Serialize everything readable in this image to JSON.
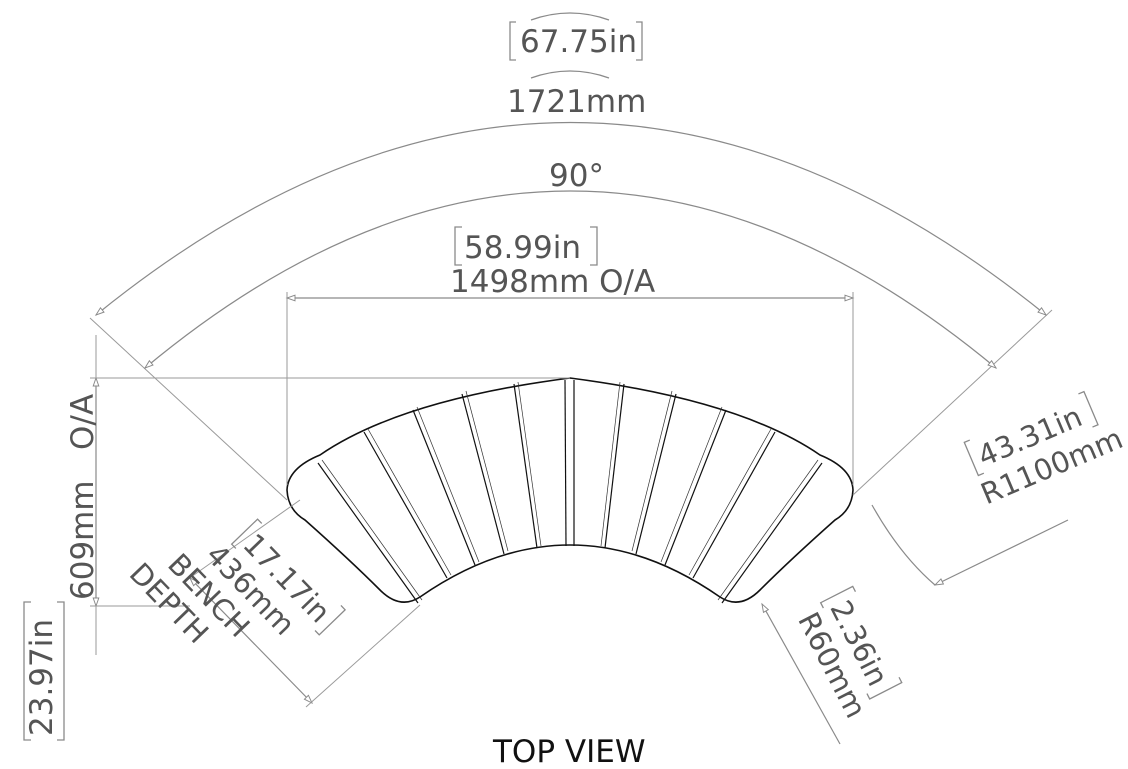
{
  "dimensions": {
    "outer_arc_in": "67.75in",
    "outer_arc_mm": "1721mm",
    "angle": "90°",
    "overall_width_in": "58.99in",
    "overall_width_mm": "1498mm O/A",
    "overall_depth_in": "23.97in",
    "overall_depth_mm": "609mm",
    "overall_depth_suffix": "O/A",
    "bench_depth_in": "17.17in",
    "bench_depth_mm": "436mm",
    "bench_depth_label_1": "BENCH",
    "bench_depth_label_2": "DEPTH",
    "outer_radius_in": "43.31in",
    "outer_radius_mm": "R1100mm",
    "corner_radius_in": "2.36in",
    "corner_radius_mm": "R60mm"
  },
  "view_title": "TOP VIEW"
}
